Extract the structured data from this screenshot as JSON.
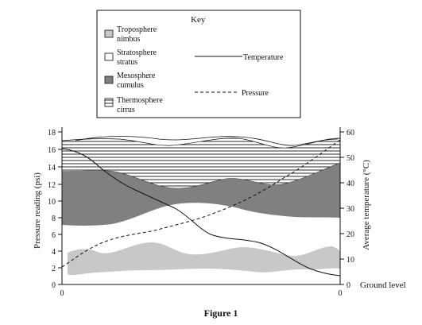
{
  "key": {
    "title": "Key",
    "layers": [
      {
        "label_lines": [
          "Troposphere",
          "nimbus"
        ],
        "swatch": "light-grey",
        "color": "#c8c8c8"
      },
      {
        "label_lines": [
          "Stratosphere",
          "stratus"
        ],
        "swatch": "white",
        "color": "#ffffff"
      },
      {
        "label_lines": [
          "Mesosphere",
          "cumulus"
        ],
        "swatch": "dark-grey",
        "color": "#808080"
      },
      {
        "label_lines": [
          "Thermosphere",
          "cirrus"
        ],
        "swatch": "horizontal-lines",
        "color": "#ffffff"
      }
    ],
    "lines": [
      {
        "label": "Temperature",
        "style": "solid"
      },
      {
        "label": "Pressure",
        "style": "dashed"
      }
    ]
  },
  "chart": {
    "left_axis": {
      "label": "Pressure reading (psi)",
      "ticks": [
        "0",
        "2",
        "4",
        "6",
        "8",
        "10",
        "12",
        "14",
        "16",
        "18"
      ]
    },
    "right_axis": {
      "label": "Average temperature (°C)",
      "ticks": [
        "0",
        "10",
        "20",
        "30",
        "40",
        "50",
        "60"
      ]
    },
    "bottom_labels": {
      "left": "0",
      "right": "0",
      "ground": "Ground level"
    }
  },
  "caption": "Figure 1"
}
